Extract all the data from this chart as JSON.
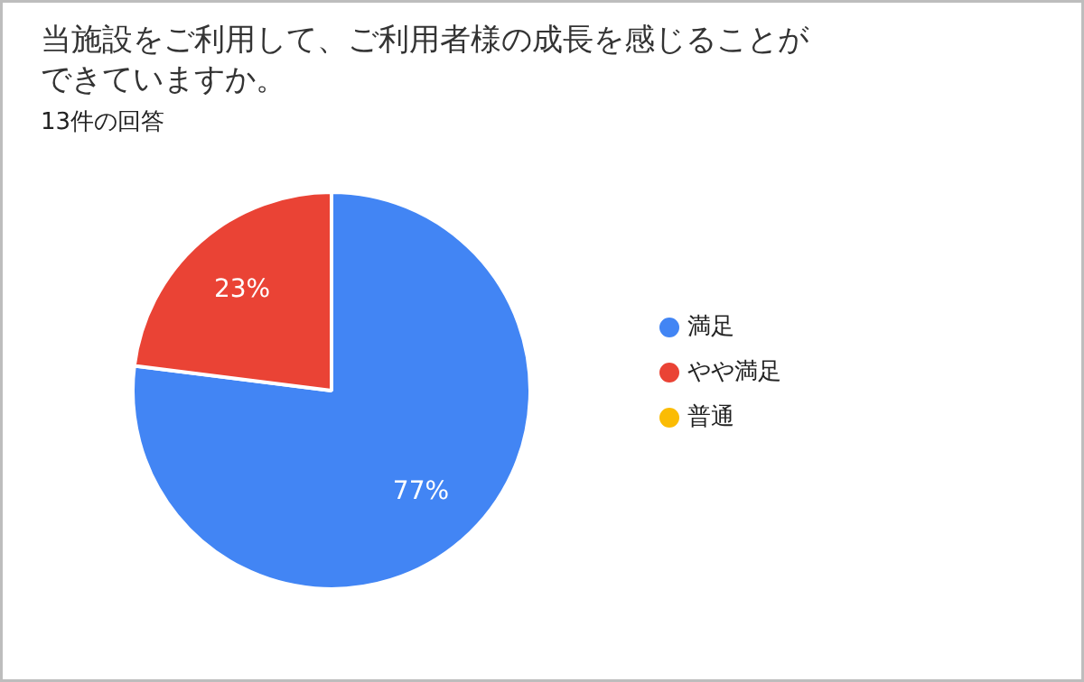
{
  "chart_data": {
    "type": "pie",
    "title": "当施設をご利用して、ご利用者様の成長を感じることができていますか。",
    "subtitle": "13件の回答",
    "categories": [
      "満足",
      "やや満足",
      "普通"
    ],
    "values": [
      77,
      23,
      0
    ],
    "colors": [
      "#4285f4",
      "#ea4335",
      "#fbbc04"
    ],
    "value_labels": [
      "77%",
      "23%",
      null
    ],
    "legend": "right"
  }
}
